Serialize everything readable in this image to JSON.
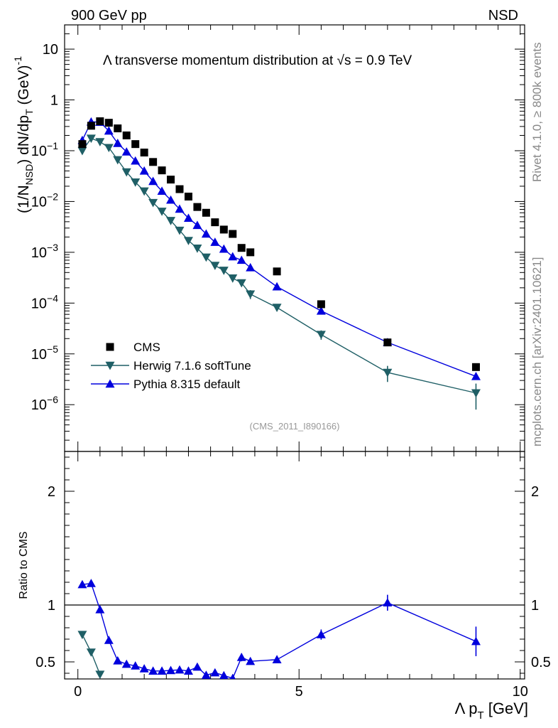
{
  "header": {
    "left": "900 GeV pp",
    "right": "NSD"
  },
  "side_texts": {
    "rivet": "Rivet 4.1.0, ≥ 800k events",
    "mcplots": "mcplots.cern.ch [arXiv:2401.10621]"
  },
  "chart_data": {
    "type": "scatter",
    "title_parts": {
      "lambda": "Λ",
      "main": " transverse momentum distribution at ",
      "sqrt": "√s",
      "energy": " = 0.9 TeV"
    },
    "ylabel_main": {
      "prefix": "(1/N",
      "sub": "NSD",
      "middle": ") dN/dp",
      "sub2": "T",
      "unit": " (GeV)",
      "sup": "-1"
    },
    "ylabel_ratio": "Ratio to CMS",
    "xlabel": {
      "lambda": "Λ",
      "p": " p",
      "sub": "T",
      "unit": " [GeV]"
    },
    "watermark": "(CMS_2011_I890166)",
    "xlim": [
      -0.3,
      10.1
    ],
    "ylim_main": [
      1.2e-07,
      30
    ],
    "ylim_ratio": [
      0.35,
      2.35
    ],
    "x_ticks": [
      0,
      5,
      10
    ],
    "x_tick_labels": [
      "0",
      "5",
      "10"
    ],
    "y_ticks_main": [
      10,
      1,
      0.1,
      0.01,
      0.001,
      0.0001,
      1e-05,
      1e-06
    ],
    "y_tick_labels_main": [
      {
        "base": "10",
        "exp": ""
      },
      {
        "base": "1",
        "exp": ""
      },
      {
        "base": "10",
        "exp": "−1"
      },
      {
        "base": "10",
        "exp": "−2"
      },
      {
        "base": "10",
        "exp": "−3"
      },
      {
        "base": "10",
        "exp": "−4"
      },
      {
        "base": "10",
        "exp": "−5"
      },
      {
        "base": "10",
        "exp": "−6"
      }
    ],
    "y_ticks_ratio": [
      2,
      1,
      0.5
    ],
    "y_tick_labels_ratio": [
      "2",
      "1",
      "0.5"
    ],
    "legend": [
      {
        "label": "CMS",
        "marker": "square",
        "color": "#000000"
      },
      {
        "label": "Herwig 7.1.6 softTune",
        "marker": "triangle-down",
        "color": "#1f5f66"
      },
      {
        "label": "Pythia 8.315 default",
        "marker": "triangle-up",
        "color": "#0000dd"
      }
    ],
    "x": [
      0.1,
      0.3,
      0.5,
      0.7,
      0.9,
      1.1,
      1.3,
      1.5,
      1.7,
      1.9,
      2.1,
      2.3,
      2.5,
      2.7,
      2.9,
      3.1,
      3.3,
      3.5,
      3.7,
      3.9,
      4.5,
      5.5,
      7.0,
      9.0
    ],
    "series": [
      {
        "name": "CMS",
        "color": "#000000",
        "values": [
          0.135,
          0.31,
          0.38,
          0.355,
          0.275,
          0.2,
          0.135,
          0.092,
          0.06,
          0.041,
          0.027,
          0.0175,
          0.0125,
          0.0078,
          0.006,
          0.0039,
          0.0028,
          0.0023,
          0.00122,
          0.001,
          0.00042,
          9.5e-05,
          1.68e-05,
          5.5e-06
        ]
      },
      {
        "name": "Herwig 7.1.6 softTune",
        "color": "#1f5f66",
        "values": [
          0.1,
          0.175,
          0.15,
          0.115,
          0.066,
          0.038,
          0.024,
          0.016,
          0.0095,
          0.0064,
          0.0042,
          0.0027,
          0.0017,
          0.0012,
          0.0008,
          0.00055,
          0.00044,
          0.00031,
          0.00025,
          0.00015,
          8.2e-05,
          2.4e-05,
          4.3e-06,
          1.7e-06
        ],
        "errors": [
          0,
          0,
          0,
          0,
          0,
          0,
          0,
          0,
          0,
          0,
          0,
          0,
          0,
          0,
          0,
          0,
          0,
          5e-05,
          4e-05,
          3e-05,
          6e-06,
          5e-06,
          1.5e-06,
          9e-07
        ]
      },
      {
        "name": "Pythia 8.315 default",
        "color": "#0000dd",
        "values": [
          0.16,
          0.37,
          0.365,
          0.245,
          0.14,
          0.095,
          0.063,
          0.04,
          0.025,
          0.016,
          0.0107,
          0.0071,
          0.0047,
          0.0034,
          0.0023,
          0.00158,
          0.00116,
          0.00082,
          0.0007,
          0.0005,
          0.00021,
          7e-05,
          1.68e-05,
          3.6e-06
        ],
        "errors": [
          0,
          0,
          0,
          0,
          0,
          0,
          0,
          0,
          0,
          0,
          0,
          0,
          0,
          0,
          0,
          0,
          0,
          0,
          0,
          0,
          0,
          6e-06,
          1e-06,
          5e-07
        ]
      }
    ],
    "ratio_series": [
      {
        "name": "Herwig 7.1.6 softTune",
        "color": "#1f5f66",
        "x": [
          0.1,
          0.3,
          0.5
        ],
        "values": [
          0.74,
          0.585,
          0.39
        ]
      },
      {
        "name": "Pythia 8.315 default",
        "color": "#0000dd",
        "x": [
          0.1,
          0.3,
          0.5,
          0.7,
          0.9,
          1.1,
          1.3,
          1.5,
          1.7,
          1.9,
          2.1,
          2.3,
          2.5,
          2.7,
          2.9,
          3.1,
          3.3,
          3.5,
          3.7,
          3.9,
          4.5,
          5.5,
          7.0,
          9.0
        ],
        "values": [
          1.18,
          1.19,
          0.96,
          0.69,
          0.51,
          0.48,
          0.465,
          0.44,
          0.42,
          0.42,
          0.425,
          0.43,
          0.42,
          0.455,
          0.383,
          0.405,
          0.38,
          0.355,
          0.54,
          0.505,
          0.52,
          0.74,
          1.02,
          0.68
        ],
        "errors": [
          0,
          0,
          0,
          0,
          0,
          0,
          0,
          0,
          0,
          0,
          0,
          0,
          0,
          0,
          0,
          0.015,
          0.02,
          0,
          0.035,
          0.03,
          0.02,
          0.045,
          0.07,
          0.13
        ]
      }
    ]
  }
}
